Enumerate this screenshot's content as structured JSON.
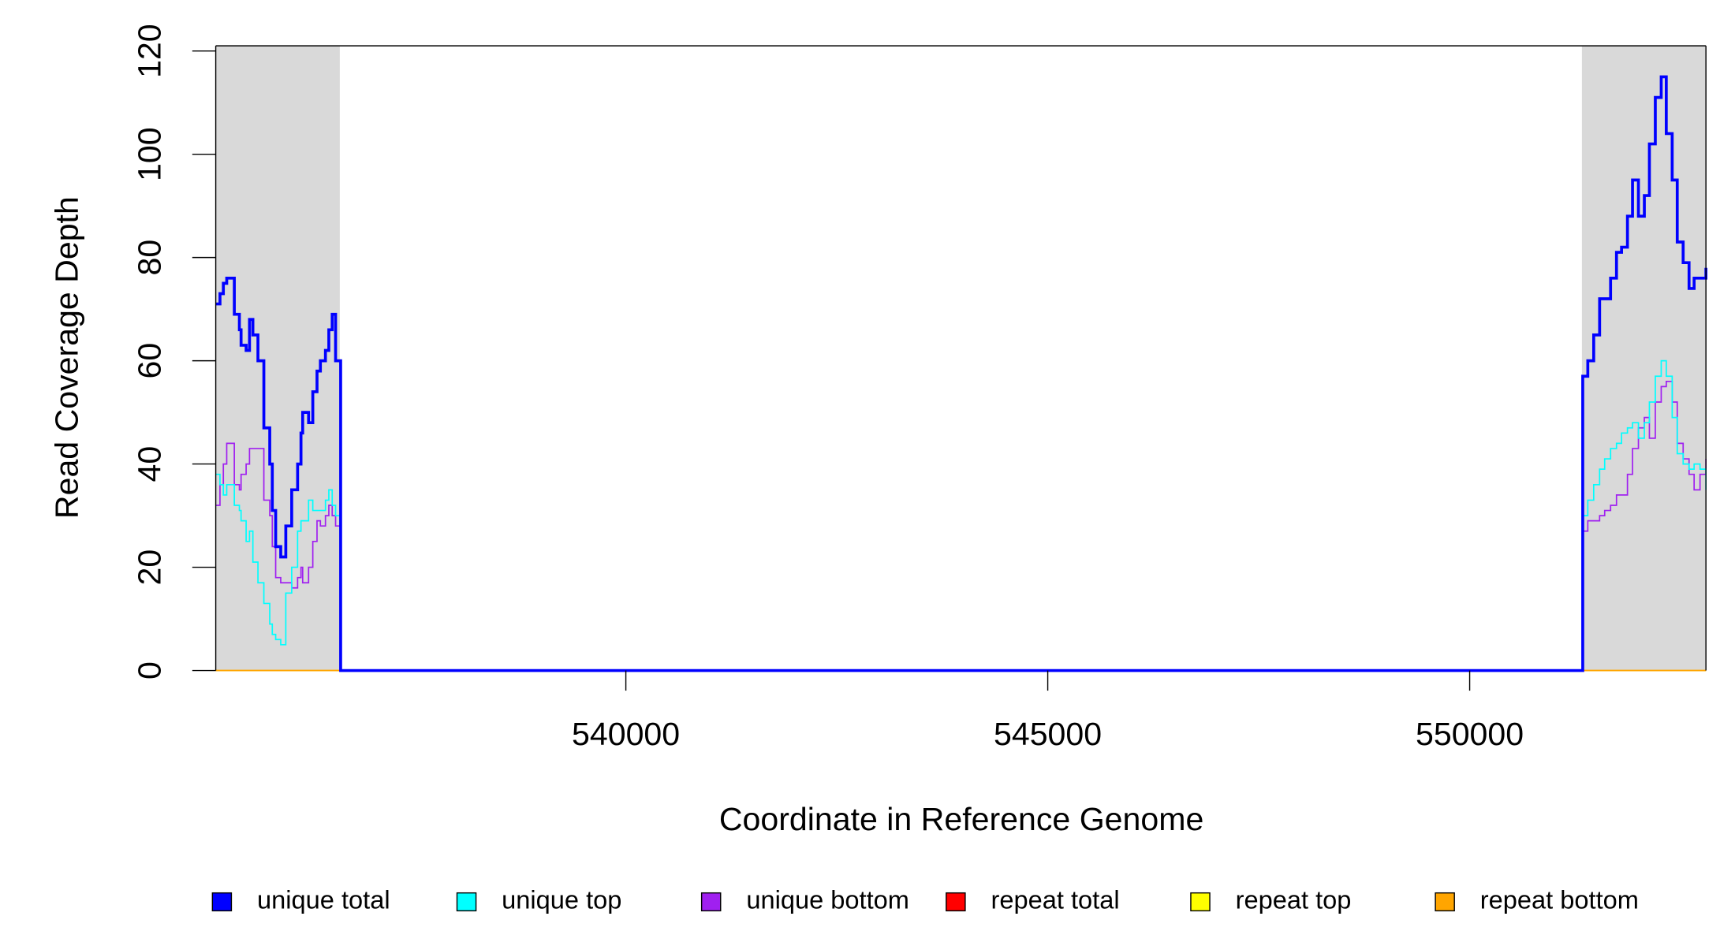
{
  "chart_data": {
    "type": "step",
    "y_label": "Read Coverage Depth",
    "x_label": "Coordinate in Reference Genome",
    "xlim": [
      535140,
      552800
    ],
    "ylim": [
      0,
      121
    ],
    "xticks": [
      540000,
      545000,
      550000
    ],
    "yticks": [
      0,
      20,
      40,
      60,
      80,
      100,
      120
    ],
    "shaded_regions": [
      [
        535140,
        536610
      ],
      [
        551330,
        552800
      ]
    ],
    "shade_color": "#d9d9d9",
    "legend": "bottom",
    "x": [
      535140,
      535190,
      535230,
      535270,
      535360,
      535420,
      535440,
      535500,
      535540,
      535580,
      535640,
      535710,
      535780,
      535810,
      535850,
      535910,
      535970,
      536040,
      536110,
      536150,
      536170,
      536240,
      536290,
      536340,
      536380,
      536440,
      536480,
      536520,
      536560,
      536620,
      551340,
      551400,
      551470,
      551540,
      551600,
      551670,
      551740,
      551800,
      551870,
      551930,
      552000,
      552070,
      552130,
      552200,
      552270,
      552330,
      552400,
      552460,
      552530,
      552600,
      552660,
      552730,
      552800
    ],
    "series": [
      {
        "name": "repeat total",
        "color": "#ff0000",
        "values": [
          0,
          0,
          0,
          0,
          0,
          0,
          0,
          0,
          0,
          0,
          0,
          0,
          0,
          0,
          0,
          0,
          0,
          0,
          0,
          0,
          0,
          0,
          0,
          0,
          0,
          0,
          0,
          0,
          0,
          0,
          0,
          0,
          0,
          0,
          0,
          0,
          0,
          0,
          0,
          0,
          0,
          0,
          0,
          0,
          0,
          0,
          0,
          0,
          0,
          0,
          0,
          0,
          0
        ]
      },
      {
        "name": "repeat top",
        "color": "#ffff00",
        "values": [
          0,
          0,
          0,
          0,
          0,
          0,
          0,
          0,
          0,
          0,
          0,
          0,
          0,
          0,
          0,
          0,
          0,
          0,
          0,
          0,
          0,
          0,
          0,
          0,
          0,
          0,
          0,
          0,
          0,
          0,
          0,
          0,
          0,
          0,
          0,
          0,
          0,
          0,
          0,
          0,
          0,
          0,
          0,
          0,
          0,
          0,
          0,
          0,
          0,
          0,
          0,
          0,
          0
        ]
      },
      {
        "name": "repeat bottom",
        "color": "#ffa500",
        "values": [
          0,
          0,
          0,
          0,
          0,
          0,
          0,
          0,
          0,
          0,
          0,
          0,
          0,
          0,
          0,
          0,
          0,
          0,
          0,
          0,
          0,
          0,
          0,
          0,
          0,
          0,
          0,
          0,
          0,
          0,
          0,
          0,
          0,
          0,
          0,
          0,
          0,
          0,
          0,
          0,
          0,
          0,
          0,
          0,
          0,
          0,
          0,
          0,
          0,
          0,
          0,
          0,
          0
        ]
      },
      {
        "name": "unique bottom",
        "color": "#a020f0",
        "values": [
          32,
          36,
          40,
          44,
          36,
          35,
          38,
          40,
          43,
          43,
          43,
          33,
          30,
          24,
          18,
          17,
          17,
          16,
          18,
          20,
          17,
          20,
          25,
          29,
          28,
          30,
          32,
          30,
          28,
          0,
          27,
          29,
          29,
          30,
          31,
          32,
          34,
          34,
          38,
          43,
          47,
          49,
          45,
          52,
          55,
          56,
          52,
          44,
          41,
          38,
          35,
          38,
          41
        ]
      },
      {
        "name": "unique top",
        "color": "#00ffff",
        "values": [
          38,
          36,
          34,
          36,
          32,
          31,
          29,
          25,
          27,
          21,
          17,
          13,
          9,
          7,
          6,
          5,
          15,
          20,
          27,
          29,
          29,
          33,
          31,
          31,
          31,
          33,
          35,
          32,
          30,
          0,
          30,
          33,
          36,
          39,
          41,
          43,
          44,
          46,
          47,
          48,
          45,
          48,
          52,
          57,
          60,
          57,
          49,
          42,
          40,
          39,
          40,
          39,
          35
        ]
      },
      {
        "name": "unique total",
        "color": "#0000ff",
        "values": [
          71,
          73,
          75,
          76,
          69,
          66,
          63,
          62,
          68,
          65,
          60,
          47,
          40,
          31,
          24,
          22,
          28,
          35,
          40,
          46,
          50,
          48,
          54,
          58,
          60,
          62,
          66,
          69,
          60,
          0,
          57,
          60,
          65,
          72,
          72,
          76,
          81,
          82,
          88,
          95,
          88,
          92,
          102,
          111,
          115,
          104,
          95,
          83,
          79,
          74,
          76,
          76,
          78
        ]
      }
    ],
    "legend_order": [
      5,
      4,
      3,
      0,
      1,
      2
    ]
  }
}
